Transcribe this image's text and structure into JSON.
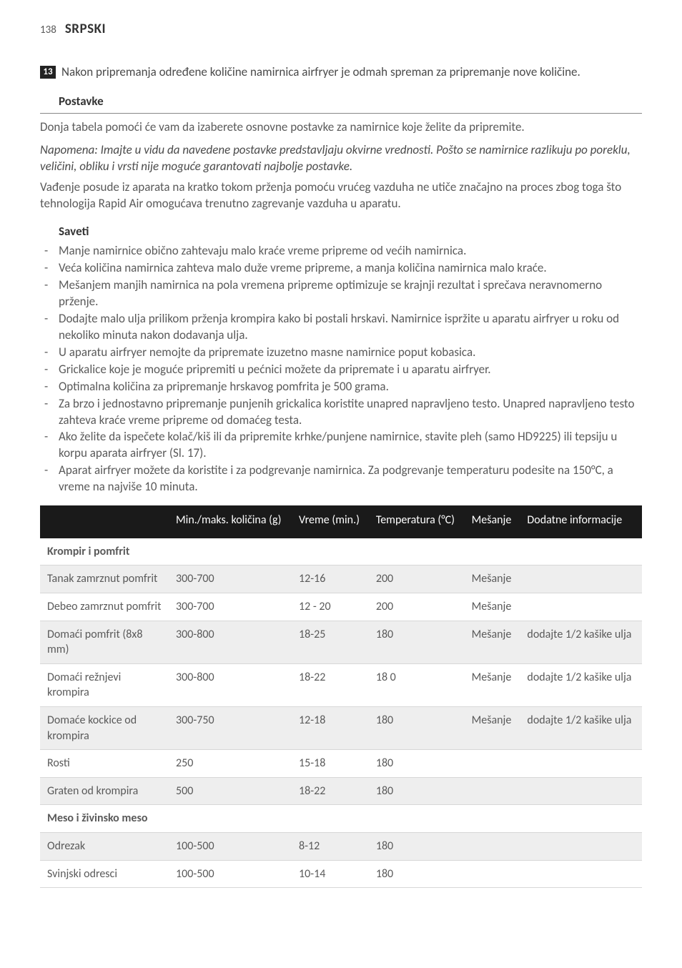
{
  "header": {
    "page_number": "138",
    "language": "SRPSKI"
  },
  "step": {
    "number": "13",
    "text": "Nakon pripremanja određene količine namirnica airfryer je odmah spreman za pripremanje nove količine."
  },
  "postavke": {
    "heading": "Postavke",
    "intro": "Donja tabela pomoći će vam da izaberete osnovne postavke za namirnice koje želite da pripremite.",
    "note": "Napomena: Imajte u vidu da navedene postavke predstavljaju okvirne vrednosti. Pošto se namirnice razlikuju po poreklu, veličini, obliku i vrsti nije moguće garantovati najbolje postavke.",
    "after_note": "Vađenje posude iz aparata na kratko tokom prženja pomoću vrućeg vazduha ne utiče značajno na proces zbog toga što tehnologija Rapid Air omogućava trenutno zagrevanje vazduha u aparatu."
  },
  "saveti": {
    "heading": "Saveti",
    "items": [
      "Manje namirnice obično zahtevaju malo kraće vreme pripreme od većih namirnica.",
      "Veća količina namirnica zahteva malo duže vreme pripreme, a manja količina namirnica malo kraće.",
      "Mešanjem manjih namirnica na pola vremena pripreme optimizuje se krajnji rezultat i sprečava neravnomerno prženje.",
      "Dodajte malo ulja prilikom prženja krompira kako bi postali hrskavi. Namirnice ispržite u aparatu airfryer u roku od nekoliko minuta nakon dodavanja ulja.",
      "U aparatu airfryer nemojte da pripremate izuzetno masne namirnice poput kobasica.",
      "Grickalice koje je moguće pripremiti u pećnici možete da pripremate i u aparatu airfryer.",
      "Optimalna količina za pripremanje hrskavog pomfrita je 500 grama.",
      "Za brzo i jednostavno pripremanje punjenih grickalica koristite unapred napravljeno testo. Unapred napravljeno testo zahteva kraće vreme pripreme od domaćeg testa.",
      "Ako želite da ispečete kolač/kiš ili da pripremite krhke/punjene namirnice, stavite pleh (samo HD9225) ili tepsiju u korpu aparata airfryer (Sl. 17).",
      "Aparat airfryer možete da koristite i za podgrevanje namirnica. Za podgrevanje temperaturu podesite na 150°C, a vreme na najviše 10 minuta."
    ]
  },
  "table": {
    "columns": [
      "",
      "Min./maks. količina (g)",
      "Vreme (min.)",
      "Temperatura (°C)",
      "Mešanje",
      "Dodatne informacije"
    ],
    "sections": [
      {
        "title": "Krompir i pomfrit",
        "rows": [
          {
            "alt": true,
            "cells": [
              "Tanak zamrznut pomfrit",
              "300-700",
              "12-16",
              "200",
              "Mešanje",
              ""
            ]
          },
          {
            "alt": false,
            "cells": [
              "Debeo zamrznut pomfrit",
              "300-700",
              "12 - 20",
              "200",
              "Mešanje",
              ""
            ]
          },
          {
            "alt": true,
            "cells": [
              "Domaći pomfrit (8x8 mm)",
              "300-800",
              "18-25",
              "180",
              "Mešanje",
              "dodajte 1/2 kašike ulja"
            ]
          },
          {
            "alt": false,
            "cells": [
              "Domaći režnjevi krompira",
              "300-800",
              "18-22",
              "18 0",
              "Mešanje",
              "dodajte 1/2 kašike ulja"
            ]
          },
          {
            "alt": true,
            "cells": [
              "Domaće kockice od krompira",
              "300-750",
              "12-18",
              "180",
              "Mešanje",
              "dodajte 1/2 kašike ulja"
            ]
          },
          {
            "alt": false,
            "cells": [
              "Rosti",
              "250",
              "15-18",
              "180",
              "",
              ""
            ]
          },
          {
            "alt": true,
            "cells": [
              "Graten od krompira",
              "500",
              "18-22",
              "180",
              "",
              ""
            ]
          }
        ]
      },
      {
        "title": "Meso i živinsko meso",
        "rows": [
          {
            "alt": true,
            "cells": [
              "Odrezak",
              "100-500",
              "8-12",
              "180",
              "",
              ""
            ]
          },
          {
            "alt": false,
            "cells": [
              "Svinjski odresci",
              "100-500",
              "10-14",
              "180",
              "",
              ""
            ]
          }
        ]
      }
    ]
  }
}
